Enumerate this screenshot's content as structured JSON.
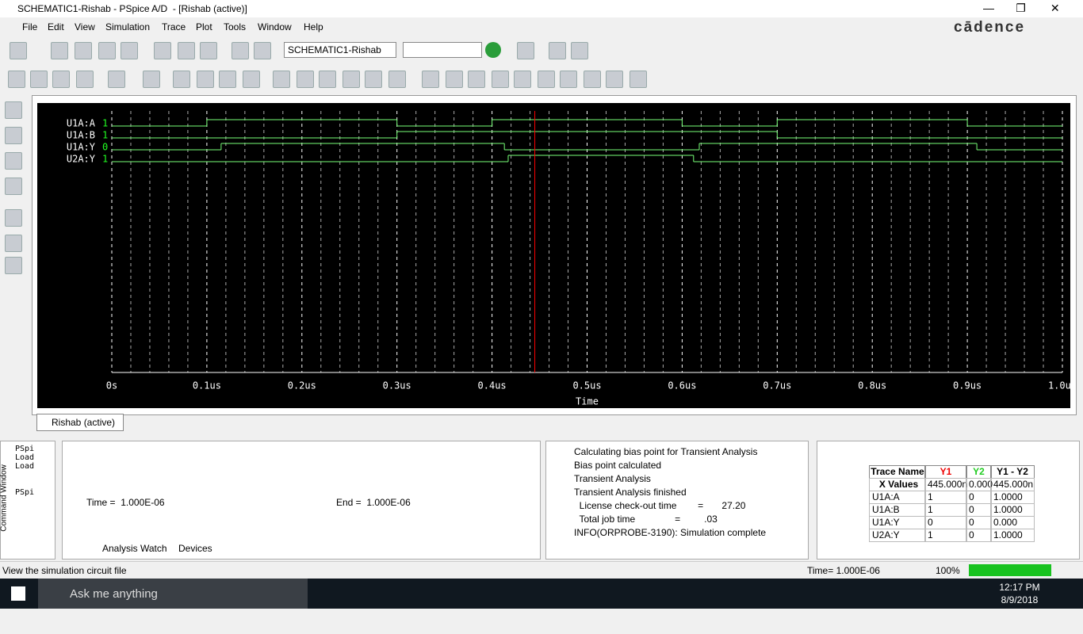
{
  "title_bar": {
    "title": "SCHEMATIC1-Rishab - PSpice A/D  - [Rishab (active)]"
  },
  "menu": [
    "File",
    "Edit",
    "View",
    "Simulation",
    "Trace",
    "Plot",
    "Tools",
    "Window",
    "Help"
  ],
  "brand": "cādence",
  "toolbar": {
    "profile": "SCHEMATIC1-Rishab"
  },
  "plot": {
    "traces": [
      {
        "name": "U1A:A",
        "value": 1,
        "initial": 0,
        "edges": [
          0.1,
          0.3,
          0.4,
          0.6,
          0.7,
          0.9
        ]
      },
      {
        "name": "U1A:B",
        "value": 1,
        "initial": 0,
        "edges": [
          0.3,
          0.7
        ]
      },
      {
        "name": "U1A:Y",
        "value": 0,
        "initial": 0,
        "edges": [
          0.115,
          0.413,
          0.618,
          0.91
        ]
      },
      {
        "name": "U2A:Y",
        "value": 1,
        "initial": 0,
        "edges": [
          0.417,
          0.612
        ]
      }
    ],
    "xlim": [
      0,
      1
    ],
    "xticks": [
      {
        "value": 0,
        "label": "0s"
      },
      {
        "value": 0.1,
        "label": "0.1us"
      },
      {
        "value": 0.2,
        "label": "0.2us"
      },
      {
        "value": 0.3,
        "label": "0.3us"
      },
      {
        "value": 0.4,
        "label": "0.4us"
      },
      {
        "value": 0.5,
        "label": "0.5us"
      },
      {
        "value": 0.6,
        "label": "0.6us"
      },
      {
        "value": 0.7,
        "label": "0.7us"
      },
      {
        "value": 0.8,
        "label": "0.8us"
      },
      {
        "value": 0.9,
        "label": "0.9us"
      },
      {
        "value": 1,
        "label": "1.0us"
      }
    ],
    "xlabel": "Time",
    "cursor": 0.445,
    "tab": "Rishab (active)"
  },
  "command": {
    "lines": [
      "PSpi",
      "Load",
      "Load",
      "PSpi"
    ],
    "label": "Command Window"
  },
  "sim_status": {
    "time": "Time =  1.000E-06",
    "end": "End =  1.000E-06",
    "tabs": [
      "Analysis",
      "Watch",
      "Devices"
    ]
  },
  "output": {
    "lines": [
      "Calculating bias point for Transient Analysis",
      "Bias point calculated",
      "Transient Analysis",
      "Transient Analysis finished",
      "  License check-out time        =       27.20",
      "  Total job time               =         .03",
      "INFO(ORPROBE-3190): Simulation complete"
    ]
  },
  "probe_table": {
    "header": [
      "Trace Name",
      "Y1",
      "Y2",
      "Y1 - Y2"
    ],
    "rows": [
      [
        "X Values",
        "445.000n",
        "0.000",
        "445.000n"
      ],
      [
        "U1A:A",
        "1",
        "0",
        "1.0000"
      ],
      [
        "U1A:B",
        "1",
        "0",
        "1.0000"
      ],
      [
        "U1A:Y",
        "0",
        "0",
        "0.000"
      ],
      [
        "U2A:Y",
        "1",
        "0",
        "1.0000"
      ]
    ]
  },
  "status_bar": {
    "message": "View the simulation circuit file",
    "time": "Time= 1.000E-06",
    "zoom": "100%"
  },
  "taskbar": {
    "search": "Ask me anything",
    "time": "12:17 PM",
    "date": "8/9/2018"
  }
}
